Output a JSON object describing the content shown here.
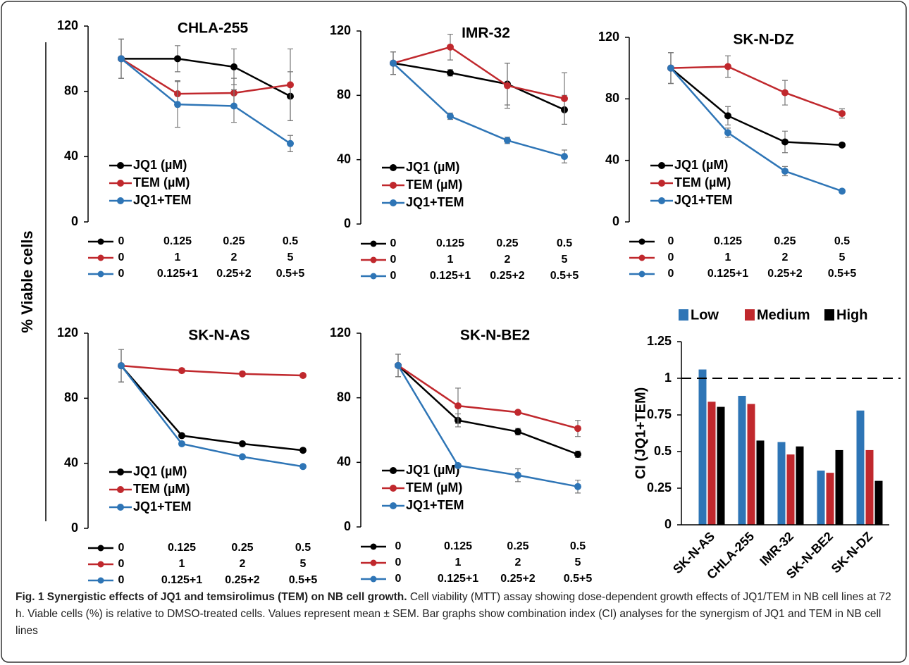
{
  "y_label": "% Viable cells",
  "chart_data": [
    {
      "type": "line",
      "title": "CHLA-255",
      "ylim": [
        0,
        120
      ],
      "yticks": [
        0,
        40,
        80,
        120
      ],
      "grid": false,
      "series": [
        {
          "name": "JQ1 (µM)",
          "color": "#000000",
          "doses": [
            "0",
            "0.125",
            "0.25",
            "0.5"
          ],
          "values": [
            100,
            100,
            95,
            77
          ],
          "errors": [
            12,
            8,
            11,
            15
          ]
        },
        {
          "name": "TEM (µM)",
          "color": "#c0282d",
          "doses": [
            "0",
            "1",
            "2",
            "5"
          ],
          "values": [
            100,
            78.5,
            79,
            84
          ],
          "errors": [
            12,
            8,
            9,
            22
          ]
        },
        {
          "name": "JQ1+TEM",
          "color": "#2e75b6",
          "doses": [
            "0",
            "0.125+1",
            "0.25+2",
            "0.5+5"
          ],
          "values": [
            100,
            72,
            71,
            48
          ],
          "errors": [
            12,
            14,
            10,
            5
          ]
        }
      ]
    },
    {
      "type": "line",
      "title": "IMR-32",
      "ylim": [
        0,
        120
      ],
      "yticks": [
        0,
        40,
        80,
        120
      ],
      "grid": false,
      "series": [
        {
          "name": "JQ1 (µM)",
          "color": "#000000",
          "doses": [
            "0",
            "0.125",
            "0.25",
            "0.5"
          ],
          "values": [
            100,
            94,
            87,
            71
          ],
          "errors": [
            7,
            2,
            13,
            9
          ]
        },
        {
          "name": "TEM (µM)",
          "color": "#c0282d",
          "doses": [
            "0",
            "1",
            "2",
            "5"
          ],
          "values": [
            100,
            110,
            86,
            78
          ],
          "errors": [
            7,
            8,
            14,
            16
          ]
        },
        {
          "name": "JQ1+TEM",
          "color": "#2e75b6",
          "doses": [
            "0",
            "0.125+1",
            "0.25+2",
            "0.5+5"
          ],
          "values": [
            100,
            67,
            52,
            42
          ],
          "errors": [
            7,
            2,
            2,
            4
          ]
        }
      ]
    },
    {
      "type": "line",
      "title": "SK-N-DZ",
      "ylim": [
        0,
        120
      ],
      "yticks": [
        0,
        40,
        80,
        120
      ],
      "grid": false,
      "series": [
        {
          "name": "JQ1 (µM)",
          "color": "#000000",
          "doses": [
            "0",
            "0.125",
            "0.25",
            "0.5"
          ],
          "values": [
            100,
            69,
            52,
            50
          ],
          "errors": [
            10,
            6,
            7,
            1
          ]
        },
        {
          "name": "TEM (µM)",
          "color": "#c0282d",
          "doses": [
            "0",
            "1",
            "2",
            "5"
          ],
          "values": [
            100,
            101,
            84,
            70.5
          ],
          "errors": [
            10,
            7,
            8,
            3
          ]
        },
        {
          "name": "JQ1+TEM",
          "color": "#2e75b6",
          "doses": [
            "0",
            "0.125+1",
            "0.25+2",
            "0.5+5"
          ],
          "values": [
            100,
            58,
            33,
            20
          ],
          "errors": [
            10,
            3,
            3,
            1
          ]
        }
      ]
    },
    {
      "type": "line",
      "title": "SK-N-AS",
      "ylim": [
        0,
        120
      ],
      "yticks": [
        0,
        40,
        80,
        120
      ],
      "grid": false,
      "series": [
        {
          "name": "JQ1 (µM)",
          "color": "#000000",
          "doses": [
            "0",
            "0.125",
            "0.25",
            "0.5"
          ],
          "values": [
            100,
            57,
            52,
            48
          ],
          "errors": [
            10,
            1,
            1,
            1
          ]
        },
        {
          "name": "TEM (µM)",
          "color": "#c0282d",
          "doses": [
            "0",
            "1",
            "2",
            "5"
          ],
          "values": [
            100,
            97,
            95,
            94
          ],
          "errors": [
            10,
            1,
            1,
            1
          ]
        },
        {
          "name": "JQ1+TEM",
          "color": "#2e75b6",
          "doses": [
            "0",
            "0.125+1",
            "0.25+2",
            "0.5+5"
          ],
          "values": [
            100,
            52,
            44,
            38
          ],
          "errors": [
            10,
            1,
            1,
            1
          ]
        }
      ]
    },
    {
      "type": "line",
      "title": "SK-N-BE2",
      "ylim": [
        0,
        120
      ],
      "yticks": [
        0,
        40,
        80,
        120
      ],
      "grid": false,
      "series": [
        {
          "name": "JQ1 (µM)",
          "color": "#000000",
          "doses": [
            "0",
            "0.125",
            "0.25",
            "0.5"
          ],
          "values": [
            100,
            66,
            59,
            45
          ],
          "errors": [
            7,
            4,
            2,
            2
          ]
        },
        {
          "name": "TEM (µM)",
          "color": "#c0282d",
          "doses": [
            "0",
            "1",
            "2",
            "5"
          ],
          "values": [
            100,
            75,
            71,
            61
          ],
          "errors": [
            7,
            11,
            1,
            5
          ]
        },
        {
          "name": "JQ1+TEM",
          "color": "#2e75b6",
          "doses": [
            "0",
            "0.125+1",
            "0.25+2",
            "0.5+5"
          ],
          "values": [
            100,
            38,
            32,
            25
          ],
          "errors": [
            7,
            1,
            4,
            4
          ]
        }
      ]
    },
    {
      "type": "bar",
      "y_label": "CI (JQ1+TEM)",
      "ylim": [
        0,
        1.25
      ],
      "yticks": [
        0,
        0.25,
        0.5,
        0.75,
        1,
        1.25
      ],
      "grid": false,
      "ref_line": 1,
      "categories": [
        "SK-N-AS",
        "CHLA-255",
        "IMR-32",
        "SK-N-BE2",
        "SK-N-DZ"
      ],
      "series": [
        {
          "name": "Low",
          "color": "#2e75b6",
          "values": [
            1.06,
            0.88,
            0.565,
            0.37,
            0.78
          ]
        },
        {
          "name": "Medium",
          "color": "#c0282d",
          "values": [
            0.84,
            0.825,
            0.48,
            0.355,
            0.51
          ]
        },
        {
          "name": "High",
          "color": "#000000",
          "values": [
            0.805,
            0.575,
            0.535,
            0.51,
            0.3
          ]
        }
      ]
    }
  ],
  "caption": {
    "label": "Fig. 1",
    "title": "Synergistic effects of JQ1 and temsirolimus (TEM) on NB cell growth.",
    "text": "Cell viability (MTT) assay showing dose-dependent growth effects of JQ1/TEM in NB cell lines at 72 h. Viable cells (%) is relative to DMSO-treated cells. Values represent mean ± SEM. Bar graphs show combination index (CI) analyses for the synergism of JQ1 and TEM in NB cell lines"
  }
}
